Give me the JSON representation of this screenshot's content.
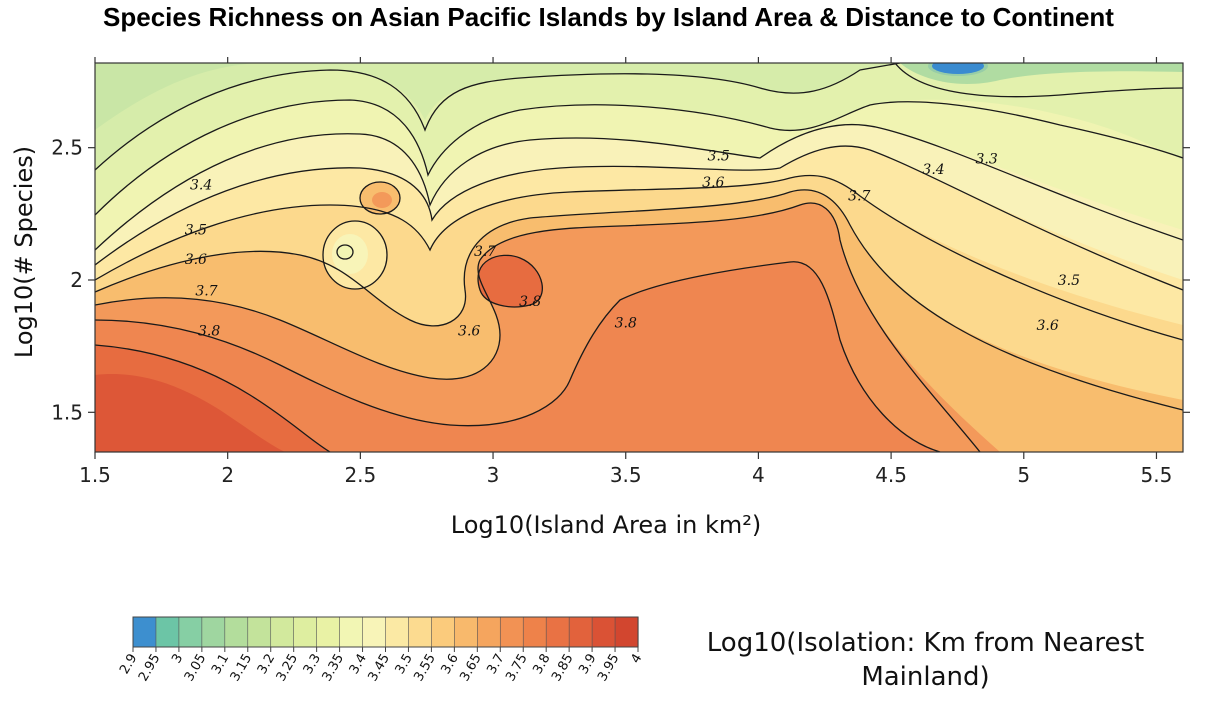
{
  "chart_data": {
    "type": "contour",
    "title": "Species Richness on Asian Pacific Islands by Island Area & Distance to Continent",
    "xlabel": "Log10(Island Area in km²)",
    "ylabel": "Log10(# Species)",
    "xlim": [
      1.5,
      5.6
    ],
    "ylim": [
      1.35,
      2.82
    ],
    "x_ticks": [
      "1.5",
      "2",
      "2.5",
      "3",
      "3.5",
      "4",
      "4.5",
      "5",
      "5.5"
    ],
    "y_ticks": [
      "1.5",
      "2",
      "2.5"
    ],
    "colorbar": {
      "label": "Log10(Isolation: Km from Nearest Mainland)",
      "levels": [
        "2.9",
        "2.95",
        "3",
        "3.05",
        "3.1",
        "3.15",
        "3.2",
        "3.25",
        "3.3",
        "3.35",
        "3.4",
        "3.45",
        "3.5",
        "3.55",
        "3.6",
        "3.65",
        "3.7",
        "3.75",
        "3.8",
        "3.85",
        "3.9",
        "3.95",
        "4"
      ],
      "colors": [
        "#3d8fcf",
        "#6cc5a6",
        "#86cfa4",
        "#9fd6a0",
        "#b3dd9c",
        "#c3e39b",
        "#d2e99d",
        "#deeea0",
        "#e9f2a5",
        "#f2f6b4",
        "#f8f4b8",
        "#fbe9a4",
        "#fcdb90",
        "#fbcb7c",
        "#f8b96c",
        "#f5a55e",
        "#f29254",
        "#ee824a",
        "#e97244",
        "#e2623c",
        "#da5235",
        "#d2462f"
      ]
    },
    "contour_labels": [
      {
        "text": "3.4",
        "x": 1.9,
        "y": 2.36
      },
      {
        "text": "3.5",
        "x": 1.88,
        "y": 2.19
      },
      {
        "text": "3.6",
        "x": 1.88,
        "y": 2.08
      },
      {
        "text": "3.7",
        "x": 1.92,
        "y": 1.96
      },
      {
        "text": "3.8",
        "x": 1.93,
        "y": 1.81
      },
      {
        "text": "3.7",
        "x": 2.97,
        "y": 2.11
      },
      {
        "text": "3.8",
        "x": 3.14,
        "y": 1.92
      },
      {
        "text": "3.6",
        "x": 2.91,
        "y": 1.81
      },
      {
        "text": "3.8",
        "x": 3.5,
        "y": 1.84
      },
      {
        "text": "3.5",
        "x": 3.85,
        "y": 2.47
      },
      {
        "text": "3.6",
        "x": 3.83,
        "y": 2.37
      },
      {
        "text": "3.7",
        "x": 4.38,
        "y": 2.32
      },
      {
        "text": "3.4",
        "x": 4.66,
        "y": 2.42
      },
      {
        "text": "3.3",
        "x": 4.86,
        "y": 2.46
      },
      {
        "text": "3.5",
        "x": 5.17,
        "y": 2.0
      },
      {
        "text": "3.6",
        "x": 5.09,
        "y": 1.83
      }
    ],
    "grid": false
  }
}
